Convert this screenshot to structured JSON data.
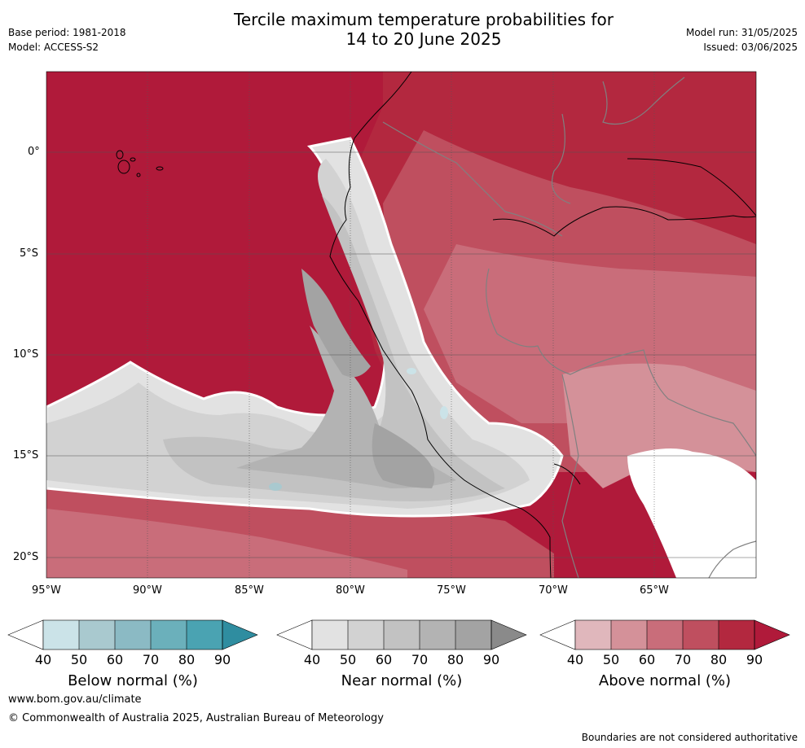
{
  "header": {
    "title_line1": "Tercile maximum temperature probabilities for",
    "title_line2": "14 to 20 June 2025",
    "base_period": "Base period: 1981-2018",
    "model": "Model: ACCESS-S2",
    "model_run": "Model run: 31/05/2025",
    "issued": "Issued: 03/06/2025"
  },
  "map": {
    "lat_labels": [
      "0°",
      "5°S",
      "10°S",
      "15°S",
      "20°S"
    ],
    "lon_labels": [
      "95°W",
      "90°W",
      "85°W",
      "80°W",
      "75°W",
      "70°W",
      "65°W"
    ],
    "colors": {
      "above": [
        "#e0b7bc",
        "#d49199",
        "#c96d7a",
        "#bf4f5f",
        "#b3283f",
        "#b01a3a"
      ],
      "near": [
        "#e2e2e2",
        "#d2d2d2",
        "#c2c2c2",
        "#b3b3b3",
        "#a3a3a3",
        "#8a8a8a"
      ],
      "below": [
        "#cbe3e8",
        "#a9c9cf",
        "#8bbac4",
        "#6bb0bb",
        "#4aa3b2",
        "#2f8da0"
      ],
      "boundary": "#808080",
      "coast": "#000000"
    }
  },
  "colorbars": [
    {
      "label": "Below normal (%)",
      "ticks": [
        "40",
        "50",
        "60",
        "70",
        "80",
        "90"
      ],
      "palette": "below"
    },
    {
      "label": "Near normal (%)",
      "ticks": [
        "40",
        "50",
        "60",
        "70",
        "80",
        "90"
      ],
      "palette": "near"
    },
    {
      "label": "Above normal (%)",
      "ticks": [
        "40",
        "50",
        "60",
        "70",
        "80",
        "90"
      ],
      "palette": "above"
    }
  ],
  "footer": {
    "url": "www.bom.gov.au/climate",
    "copyright": "© Commonwealth of Australia 2025, Australian Bureau of Meteorology",
    "disclaimer": "Boundaries are not considered authoritative"
  }
}
